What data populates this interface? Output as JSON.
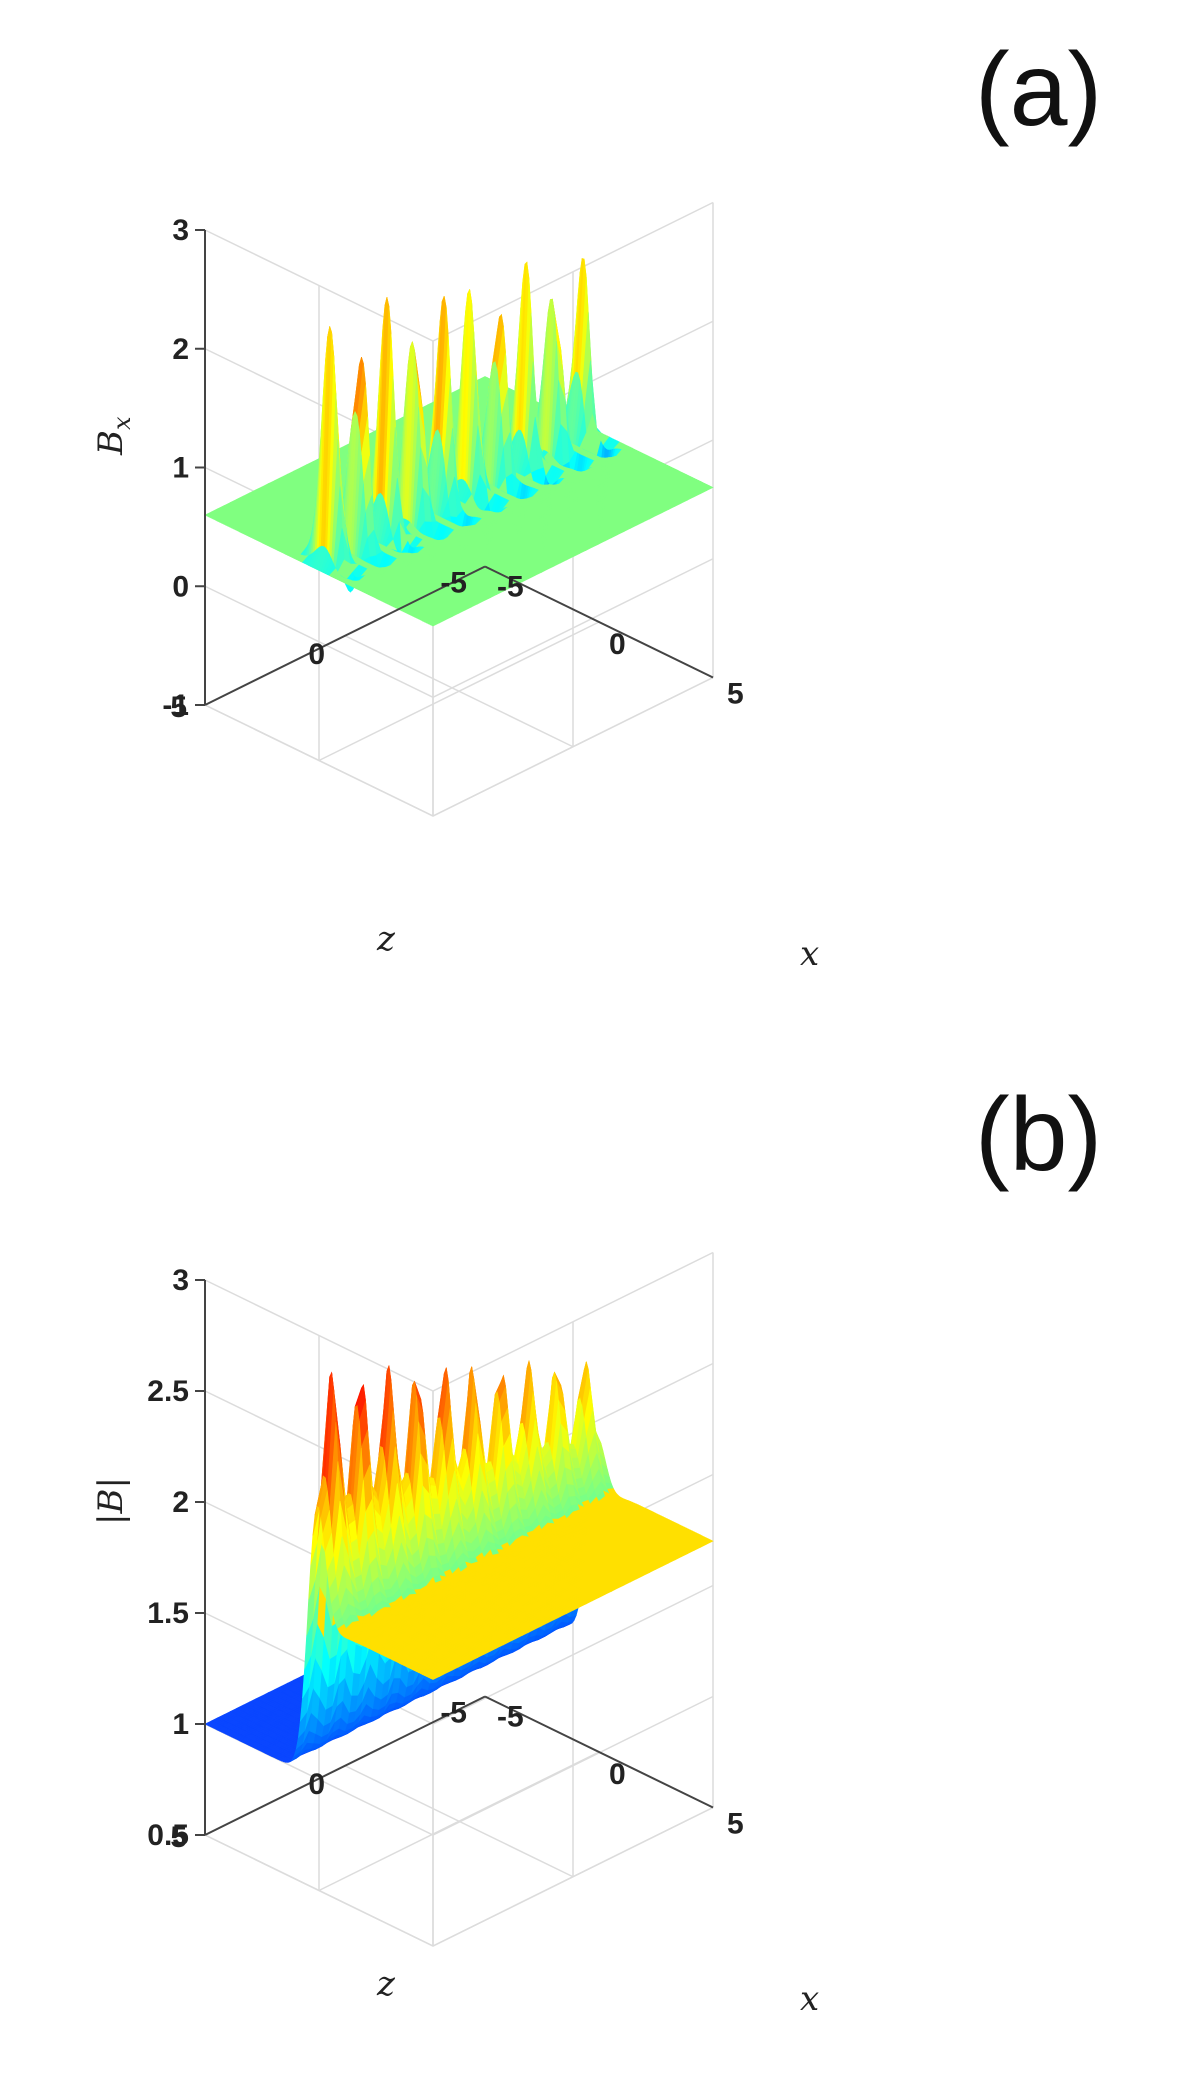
{
  "chart_data": [
    {
      "panel_label": "(a)",
      "type": "surface",
      "xlabel": "x",
      "ylabel": "z",
      "zlabel": "B_x",
      "zlabel_display": "Bx",
      "xlim": [
        -5,
        5
      ],
      "ylim": [
        -5,
        5
      ],
      "zlim": [
        -1,
        3
      ],
      "x_ticks": [
        "-5",
        "0",
        "5"
      ],
      "y_ticks": [
        "-5",
        "0",
        "5"
      ],
      "z_ticks": [
        "-1",
        "0",
        "1",
        "2",
        "3"
      ],
      "grid": true,
      "colormap": "jet",
      "baseline": 0.6,
      "peak_max": 3.0,
      "peak_min": 2.6,
      "trough": -1.0,
      "num_peaks": 10,
      "plane_color": "#80ff80"
    },
    {
      "panel_label": "(b)",
      "type": "surface",
      "xlabel": "x",
      "ylabel": "z",
      "zlabel": "|B|",
      "zlabel_display": "|B|",
      "xlim": [
        -5,
        5
      ],
      "ylim": [
        -5,
        5
      ],
      "zlim": [
        0.5,
        3
      ],
      "x_ticks": [
        "-5",
        "0",
        "5"
      ],
      "y_ticks": [
        "-5",
        "0",
        "5"
      ],
      "z_ticks": [
        "0.5",
        "1",
        "1.5",
        "2",
        "2.5",
        "3"
      ],
      "grid": true,
      "colormap": "jet",
      "baseline_low": 1.0,
      "baseline_high": 1.7,
      "peak_max": 3.0,
      "peak_min": 2.4,
      "trough": 0.6,
      "num_peaks": 10,
      "low_color": "#0a46ff",
      "high_color": "#ffe000"
    }
  ]
}
